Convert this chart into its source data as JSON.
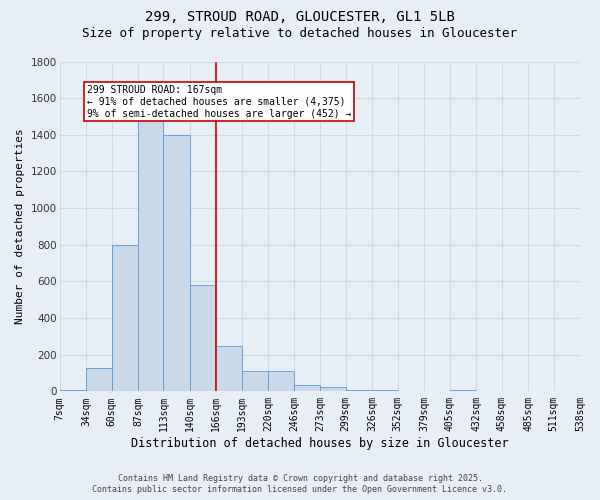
{
  "title_line1": "299, STROUD ROAD, GLOUCESTER, GL1 5LB",
  "title_line2": "Size of property relative to detached houses in Gloucester",
  "xlabel": "Distribution of detached houses by size in Gloucester",
  "ylabel": "Number of detached properties",
  "bin_edges": [
    7,
    34,
    60,
    87,
    113,
    140,
    166,
    193,
    220,
    246,
    273,
    299,
    326,
    352,
    379,
    405,
    432,
    458,
    485,
    511,
    538
  ],
  "bar_heights": [
    10,
    130,
    800,
    1500,
    1400,
    580,
    250,
    110,
    110,
    35,
    25,
    10,
    10,
    0,
    0,
    10,
    0,
    0,
    0,
    0
  ],
  "bar_color": "#c9d9ea",
  "bar_edge_color": "#5b9bd5",
  "property_line_x": 167,
  "property_line_color": "#cc0000",
  "annotation_text": "299 STROUD ROAD: 167sqm\n← 91% of detached houses are smaller (4,375)\n9% of semi-detached houses are larger (452) →",
  "annotation_box_color": "#ffffff",
  "annotation_box_edge_color": "#cc0000",
  "ylim": [
    0,
    1800
  ],
  "yticks": [
    0,
    200,
    400,
    600,
    800,
    1000,
    1200,
    1400,
    1600,
    1800
  ],
  "background_color": "#e8eef5",
  "grid_color": "#d0d8e4",
  "footer_line1": "Contains HM Land Registry data © Crown copyright and database right 2025.",
  "footer_line2": "Contains public sector information licensed under the Open Government Licence v3.0.",
  "title_fontsize": 10,
  "subtitle_fontsize": 9,
  "tick_label_fontsize": 7,
  "ylabel_fontsize": 8,
  "xlabel_fontsize": 8.5,
  "annotation_fontsize": 7,
  "footer_fontsize": 6
}
